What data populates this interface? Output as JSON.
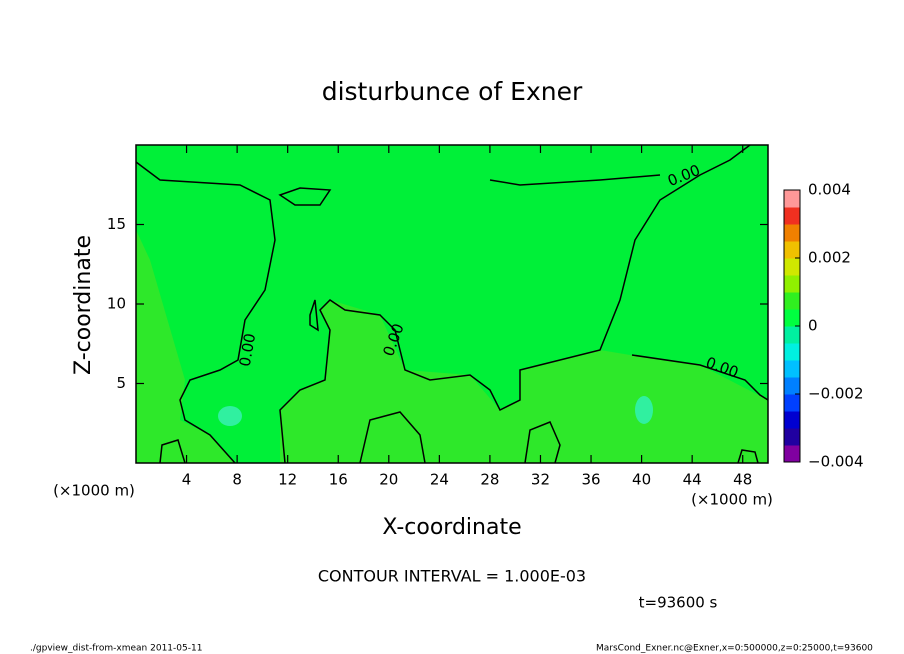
{
  "chart_data": {
    "type": "contour",
    "title": "disturbunce of Exner",
    "x_label": "X-coordinate",
    "y_label": "Z-coordinate",
    "x_unit": "(×1000 m)",
    "y_unit": "(×1000 m)",
    "xlim": [
      0,
      50
    ],
    "xticks": [
      4,
      8,
      12,
      16,
      20,
      24,
      28,
      32,
      36,
      40,
      44,
      48
    ],
    "ylim": [
      0,
      20
    ],
    "yticks": [
      5,
      10,
      15
    ],
    "contour_labels": [
      "0.00",
      "0.00",
      "0.00",
      "0.00"
    ],
    "colorbar": {
      "clim": [
        -0.004,
        0.004
      ],
      "ticks": [
        {
          "value": 0.004,
          "label": "0.004"
        },
        {
          "value": 0.002,
          "label": "0.002"
        },
        0,
        {
          "value": -0.002,
          "label": "−0.002"
        },
        {
          "value": -0.004,
          "label": "−0.004"
        }
      ],
      "colors": [
        "#8000a0",
        "#2000a0",
        "#0000d0",
        "#0040ff",
        "#0080ff",
        "#00c0ff",
        "#00f0e0",
        "#00f0a0",
        "#00ff40",
        "#30f020",
        "#90f000",
        "#d0e800",
        "#f0c000",
        "#f08000",
        "#f03020",
        "#ff9898"
      ]
    },
    "contour_interval": "CONTOUR INTERVAL = 1.000E-03",
    "time": "t=93600 s",
    "footer_left": "./gpview_dist-from-xmean  2011-05-11",
    "footer_right": "MarsCond_Exner.nc@Exner,x=0:500000,z=0:25000,t=93600"
  }
}
